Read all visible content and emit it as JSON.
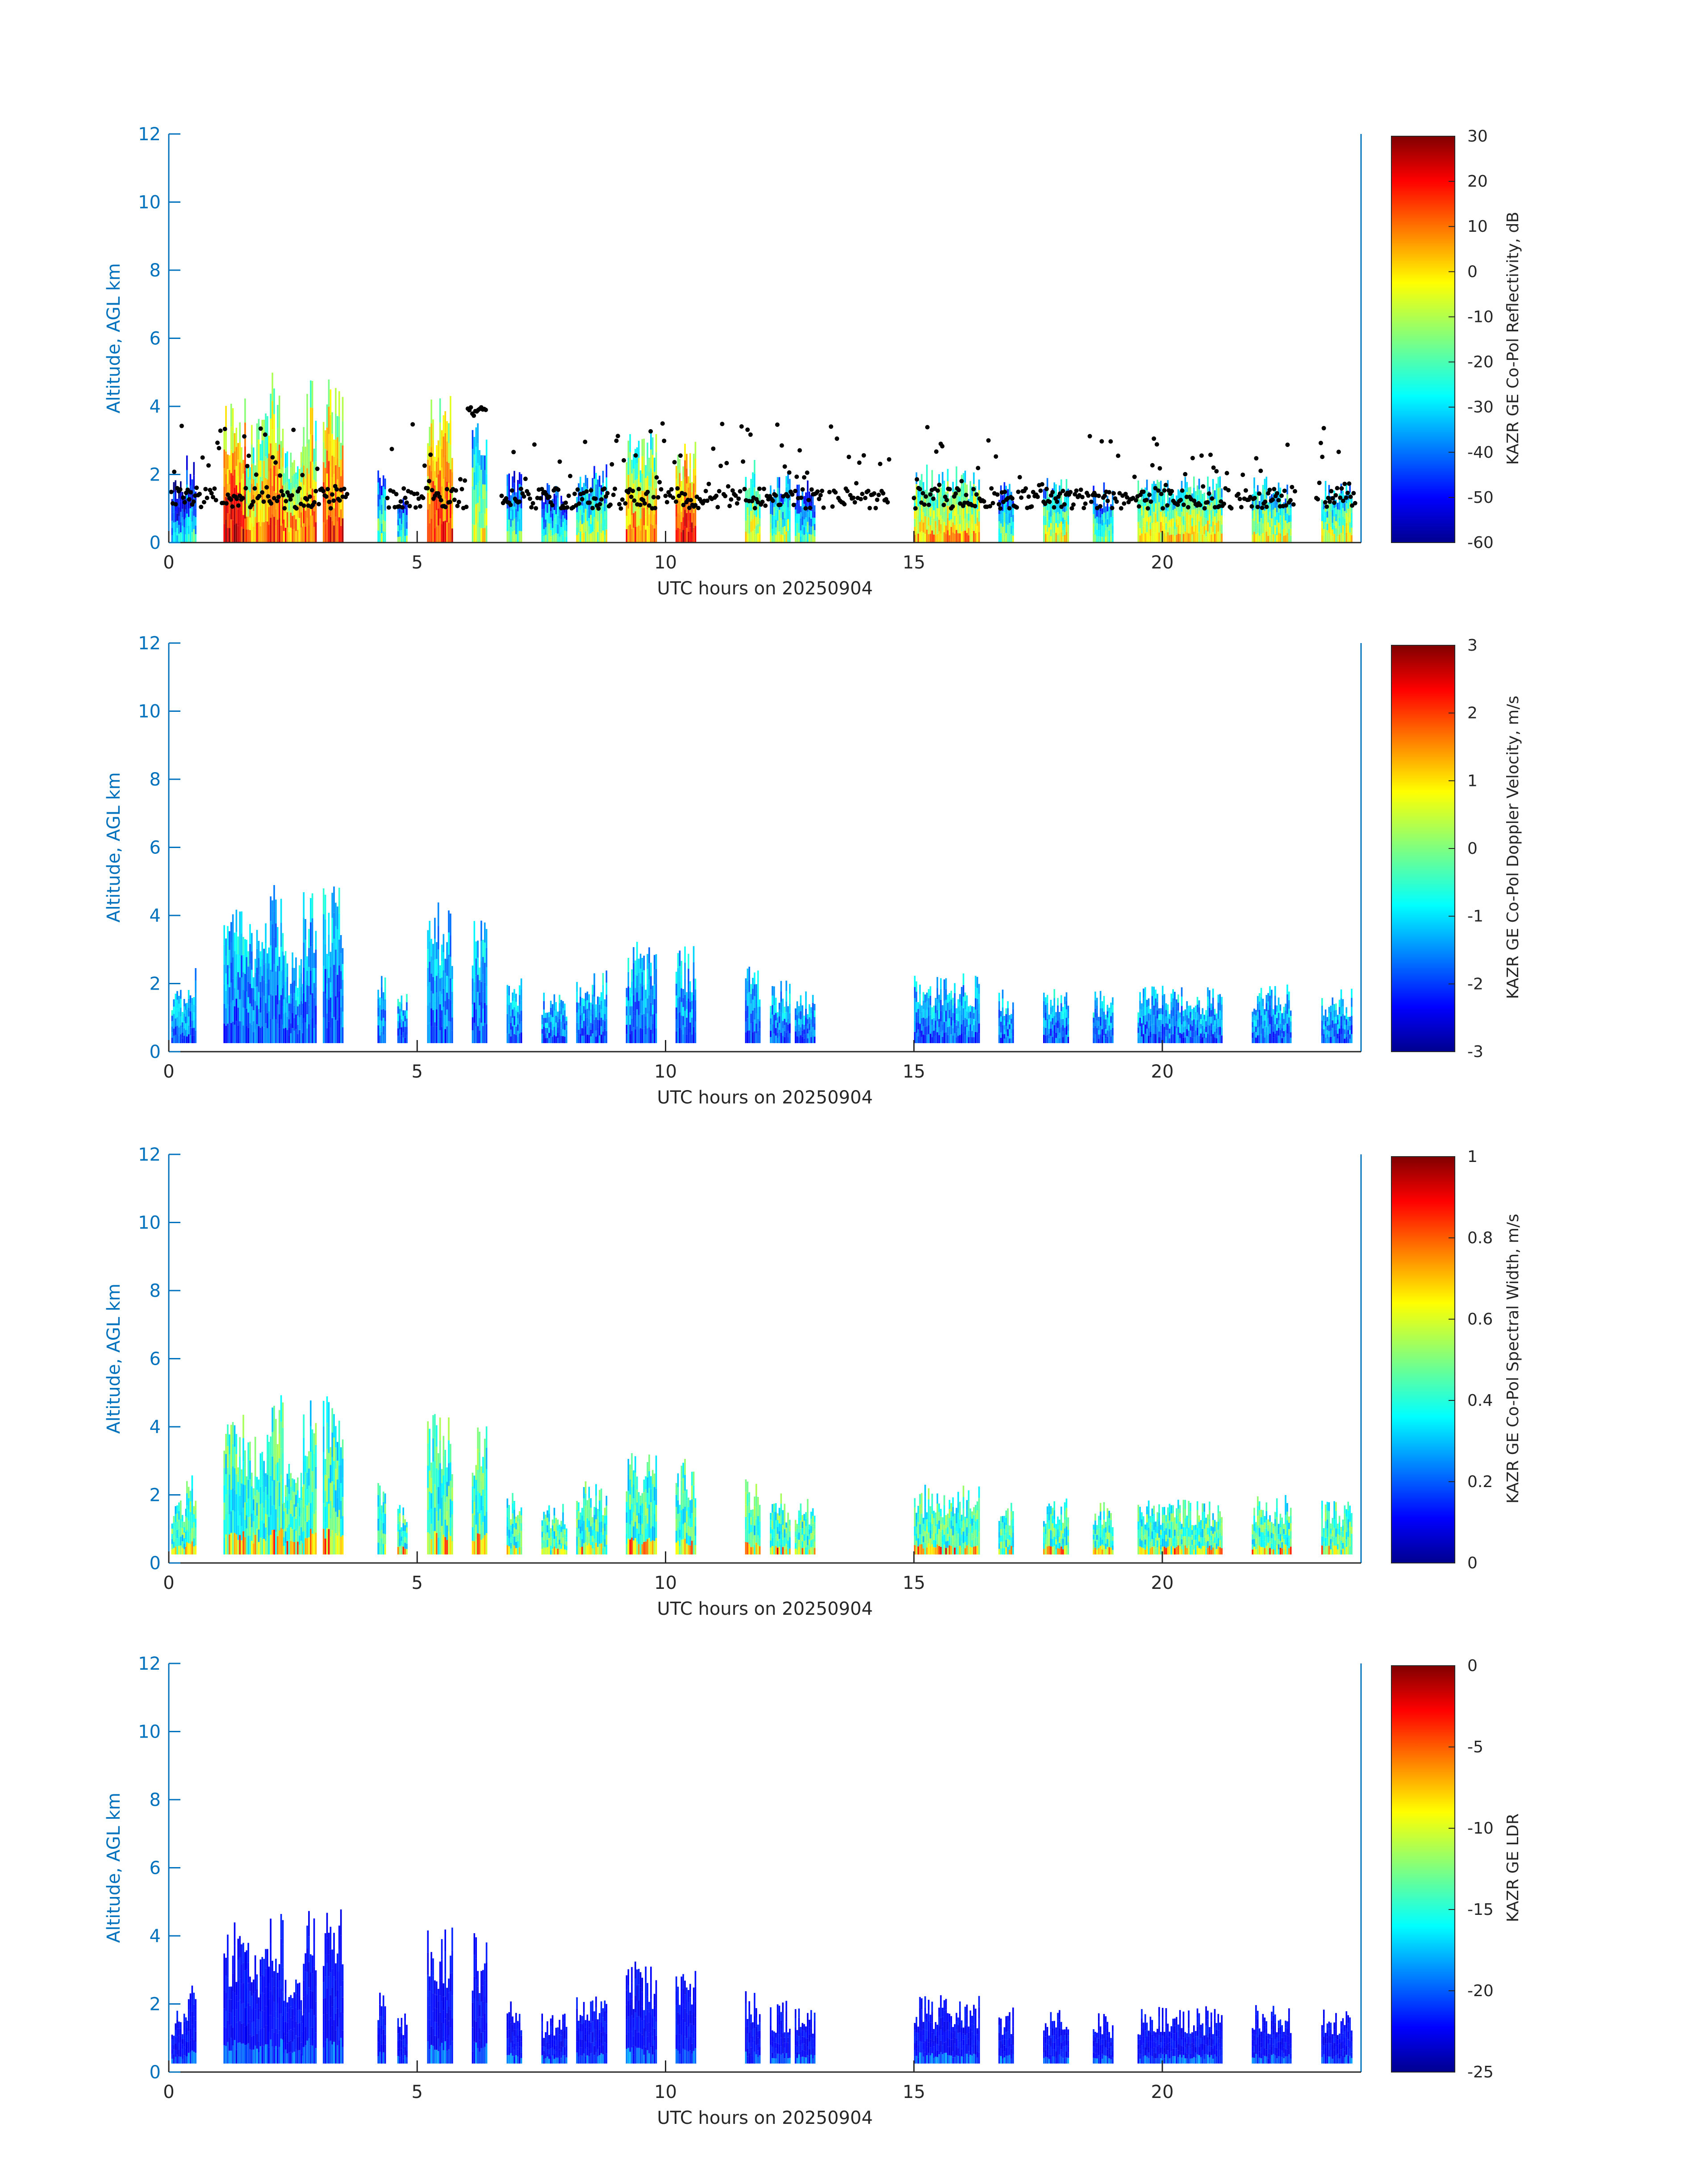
{
  "figure": {
    "background": "#ffffff",
    "axis_color": "#0072BD",
    "text_color": "#262626",
    "colormap": "jet"
  },
  "chart_data": [
    {
      "type": "heatmap",
      "panel": "reflectivity",
      "xlabel": "UTC hours on 20250904",
      "ylabel": "Altitude, AGL km",
      "xlim": [
        0,
        24
      ],
      "ylim": [
        0,
        12
      ],
      "xticks": [
        "0",
        "5",
        "10",
        "15",
        "20"
      ],
      "yticks": [
        "0",
        "2",
        "4",
        "6",
        "8",
        "10",
        "12"
      ],
      "colorbar": {
        "label": "KAZR GE Co-Pol Reflectivity, dB",
        "ticks": [
          "-60",
          "-50",
          "-40",
          "-30",
          "-20",
          "-10",
          "0",
          "10",
          "20",
          "30"
        ],
        "range": [
          -60,
          30
        ]
      },
      "overlay": "cloud base points (black)",
      "cloud_columns": [
        {
          "t0": 0.05,
          "t1": 0.35,
          "top": 1.9,
          "int": 0.35
        },
        {
          "t0": 0.35,
          "t1": 0.55,
          "top": 2.6,
          "int": 0.4
        },
        {
          "t0": 1.1,
          "t1": 1.55,
          "top": 4.4,
          "int": 0.9
        },
        {
          "t0": 1.55,
          "t1": 2.0,
          "top": 3.8,
          "int": 0.75
        },
        {
          "t0": 2.0,
          "t1": 2.3,
          "top": 5.0,
          "int": 0.85
        },
        {
          "t0": 2.3,
          "t1": 2.7,
          "top": 3.0,
          "int": 0.75
        },
        {
          "t0": 2.7,
          "t1": 2.95,
          "top": 4.8,
          "int": 0.8
        },
        {
          "t0": 3.1,
          "t1": 3.5,
          "top": 5.0,
          "int": 0.85
        },
        {
          "t0": 4.2,
          "t1": 4.35,
          "top": 2.5,
          "int": 0.5
        },
        {
          "t0": 4.6,
          "t1": 4.8,
          "top": 1.8,
          "int": 0.45
        },
        {
          "t0": 5.2,
          "t1": 5.7,
          "top": 4.4,
          "int": 0.85
        },
        {
          "t0": 6.1,
          "t1": 6.4,
          "top": 4.2,
          "int": 0.6
        },
        {
          "t0": 6.8,
          "t1": 7.1,
          "top": 2.2,
          "int": 0.45
        },
        {
          "t0": 7.5,
          "t1": 8.0,
          "top": 1.8,
          "int": 0.45
        },
        {
          "t0": 8.2,
          "t1": 8.8,
          "top": 2.4,
          "int": 0.55
        },
        {
          "t0": 9.2,
          "t1": 9.8,
          "top": 3.3,
          "int": 0.75
        },
        {
          "t0": 10.2,
          "t1": 10.6,
          "top": 3.1,
          "int": 0.9
        },
        {
          "t0": 11.6,
          "t1": 11.9,
          "top": 2.5,
          "int": 0.65
        },
        {
          "t0": 12.1,
          "t1": 12.5,
          "top": 2.1,
          "int": 0.55
        },
        {
          "t0": 12.6,
          "t1": 13.0,
          "top": 1.9,
          "int": 0.45
        },
        {
          "t0": 15.0,
          "t1": 16.3,
          "top": 2.3,
          "int": 0.7
        },
        {
          "t0": 16.7,
          "t1": 17.0,
          "top": 1.9,
          "int": 0.5
        },
        {
          "t0": 17.6,
          "t1": 18.1,
          "top": 1.9,
          "int": 0.6
        },
        {
          "t0": 18.6,
          "t1": 19.0,
          "top": 1.8,
          "int": 0.5
        },
        {
          "t0": 19.5,
          "t1": 21.2,
          "top": 1.95,
          "int": 0.65
        },
        {
          "t0": 21.8,
          "t1": 22.6,
          "top": 2.0,
          "int": 0.6
        },
        {
          "t0": 23.2,
          "t1": 23.8,
          "top": 1.85,
          "int": 0.6
        }
      ]
    },
    {
      "type": "heatmap",
      "panel": "doppler_velocity",
      "xlabel": "UTC hours on 20250904",
      "ylabel": "Altitude, AGL km",
      "xlim": [
        0,
        24
      ],
      "ylim": [
        0,
        12
      ],
      "xticks": [
        "0",
        "5",
        "10",
        "15",
        "20"
      ],
      "yticks": [
        "0",
        "2",
        "4",
        "6",
        "8",
        "10",
        "12"
      ],
      "colorbar": {
        "label": "KAZR GE Co-Pol Doppler Velocity, m/s",
        "ticks": [
          "-3",
          "-2",
          "-1",
          "0",
          "1",
          "2",
          "3"
        ],
        "range": [
          -3,
          3
        ]
      }
    },
    {
      "type": "heatmap",
      "panel": "spectral_width",
      "xlabel": "UTC hours on 20250904",
      "ylabel": "Altitude, AGL km",
      "xlim": [
        0,
        24
      ],
      "ylim": [
        0,
        12
      ],
      "xticks": [
        "0",
        "5",
        "10",
        "15",
        "20"
      ],
      "yticks": [
        "0",
        "2",
        "4",
        "6",
        "8",
        "10",
        "12"
      ],
      "colorbar": {
        "label": "KAZR GE Co-Pol Spectral Width, m/s",
        "ticks": [
          "0",
          "0.2",
          "0.4",
          "0.6",
          "0.8",
          "1"
        ],
        "range": [
          0,
          1
        ]
      }
    },
    {
      "type": "heatmap",
      "panel": "ldr",
      "xlabel": "UTC hours on 20250904",
      "ylabel": "Altitude, AGL km",
      "xlim": [
        0,
        24
      ],
      "ylim": [
        0,
        12
      ],
      "xticks": [
        "0",
        "5",
        "10",
        "15",
        "20"
      ],
      "yticks": [
        "0",
        "2",
        "4",
        "6",
        "8",
        "10",
        "12"
      ],
      "colorbar": {
        "label": "KAZR GE LDR",
        "ticks": [
          "-25",
          "-20",
          "-15",
          "-10",
          "-5",
          "0"
        ],
        "range": [
          -25,
          0
        ]
      }
    }
  ]
}
